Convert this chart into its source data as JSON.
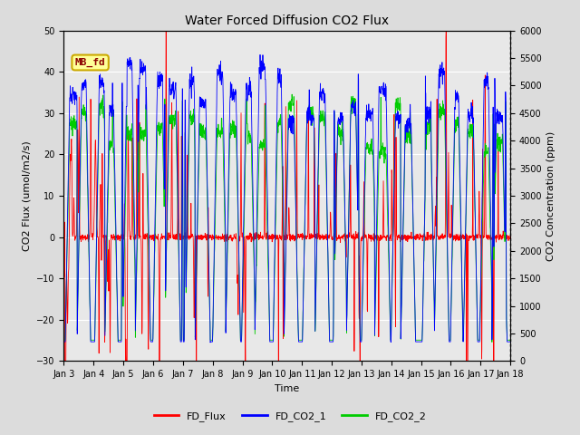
{
  "title": "Water Forced Diffusion CO2 Flux",
  "xlabel": "Time",
  "ylabel_left": "CO2 Flux (umol/m2/s)",
  "ylabel_right": "CO2 Concentration (ppm)",
  "ylim_left": [
    -30,
    50
  ],
  "ylim_right": [
    0,
    6000
  ],
  "yticks_left": [
    -30,
    -20,
    -10,
    0,
    10,
    20,
    30,
    40,
    50
  ],
  "yticks_right": [
    0,
    500,
    1000,
    1500,
    2000,
    2500,
    3000,
    3500,
    4000,
    4500,
    5000,
    5500,
    6000
  ],
  "annotation_text": "MB_fd",
  "bg_color": "#dcdcdc",
  "plot_bg_color": "#e8e8e8",
  "grid_color": "#ffffff",
  "flux_color": "#ff0000",
  "co2_1_color": "#0000ff",
  "co2_2_color": "#00cc00",
  "n_days": 15,
  "points_per_day": 144,
  "seed": 7,
  "figwidth": 6.4,
  "figheight": 4.8,
  "dpi": 100
}
